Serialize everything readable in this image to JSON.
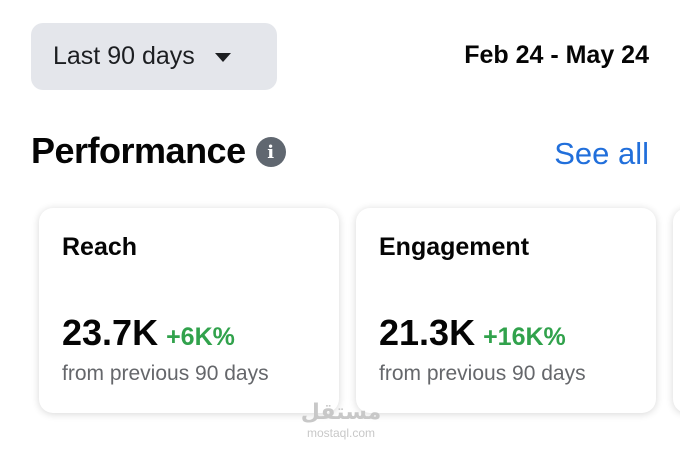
{
  "header": {
    "range_label": "Last 90 days",
    "date_range": "Feb 24 - May 24"
  },
  "performance": {
    "title": "Performance",
    "info_icon": "info-icon",
    "see_all": "See all",
    "cards": [
      {
        "label": "Reach",
        "value": "23.7K",
        "change": "+6K%",
        "subtext": "from previous 90 days"
      },
      {
        "label": "Engagement",
        "value": "21.3K",
        "change": "+16K%",
        "subtext": "from previous 90 days"
      }
    ]
  },
  "watermark": {
    "arabic": "مستقل",
    "latin": "mostaql.com"
  },
  "colors": {
    "accent": "#216fdb",
    "positive": "#31a24c",
    "button_bg": "#e4e6eb",
    "muted_text": "#65676b"
  }
}
